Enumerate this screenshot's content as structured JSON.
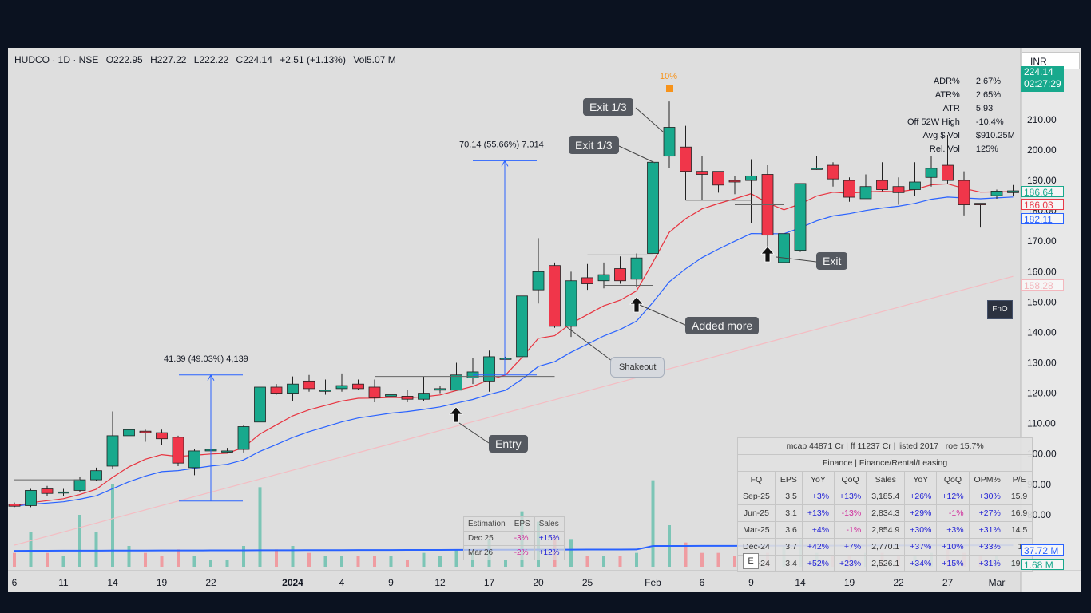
{
  "header": {
    "symbol": "HUDCO · 1D · NSE",
    "open": "O222.95",
    "high": "H227.22",
    "low": "L222.22",
    "close": "C224.14",
    "change": "+2.51 (+1.13%)",
    "volume": "Vol5.07 M"
  },
  "currency": "INR",
  "price_scale": {
    "last_price": "224.14",
    "countdown": "02:27:29",
    "tags": [
      {
        "label": "186.64",
        "color": "#18a98d"
      },
      {
        "label": "186.03",
        "color": "#e93a48"
      },
      {
        "label": "182.11",
        "color": "#2962ff"
      },
      {
        "label": "158.28",
        "color": "#f3b7bd"
      }
    ],
    "volume_tags": [
      {
        "label": "37.72 M",
        "color": "#2962ff"
      },
      {
        "label": "1.68 M",
        "color": "#18a98d"
      }
    ]
  },
  "stats": [
    {
      "label": "ADR%",
      "value": "2.67%"
    },
    {
      "label": "ATR%",
      "value": "2.65%"
    },
    {
      "label": "ATR",
      "value": "5.93"
    },
    {
      "label": "Off 52W High",
      "value": "-10.4%"
    },
    {
      "label": "Avg $ Vol",
      "value": "$910.25M"
    },
    {
      "label": "Rel. Vol",
      "value": "125%"
    }
  ],
  "annotations": {
    "exit_third_1": "Exit 1/3",
    "exit_third_2": "Exit 1/3",
    "added_more": "Added more",
    "entry": "Entry",
    "exit": "Exit",
    "shakeout": "Shakeout",
    "pct_marker": "10%",
    "measure_1": "41.39 (49.03%) 4,139",
    "measure_2": "70.14 (55.66%) 7,014",
    "fno": "FnO",
    "earnings": "E"
  },
  "estimation": {
    "headers": [
      "Estimation",
      "EPS",
      "Sales"
    ],
    "rows": [
      [
        "Dec 25",
        "-3%",
        "+15%"
      ],
      [
        "Mar 26",
        "-2%",
        "+12%"
      ]
    ]
  },
  "financials": {
    "summary": "mcap 44871 Cr  |  ff 11237 Cr  |  listed 2017  |  roe 15.7%",
    "sector": "Finance  |  Finance/Rental/Leasing",
    "headers": [
      "FQ",
      "EPS",
      "YoY",
      "QoQ",
      "Sales",
      "YoY",
      "QoQ",
      "OPM%",
      "P/E"
    ],
    "rows": [
      [
        "Sep-25",
        "3.5",
        "+3%",
        "+13%",
        "3,185.4",
        "+26%",
        "+12%",
        "+30%",
        "15.9"
      ],
      [
        "Jun-25",
        "3.1",
        "+13%",
        "-13%",
        "2,834.3",
        "+29%",
        "-1%",
        "+27%",
        "16.9"
      ],
      [
        "Mar-25",
        "3.6",
        "+4%",
        "-1%",
        "2,854.9",
        "+30%",
        "+3%",
        "+31%",
        "14.5"
      ],
      [
        "Dec-24",
        "3.7",
        "+42%",
        "+7%",
        "2,770.1",
        "+37%",
        "+10%",
        "+33%",
        "17"
      ],
      [
        "Sep-24",
        "3.4",
        "+52%",
        "+23%",
        "2,526.1",
        "+34%",
        "+15%",
        "+31%",
        "19.1"
      ]
    ]
  },
  "chart_data": {
    "type": "candlestick",
    "ylim": [
      65,
      231
    ],
    "y_ticks": [
      80,
      90,
      100,
      110,
      120,
      130,
      140,
      150,
      160,
      170,
      180,
      190,
      200,
      210
    ],
    "x_tick_labels": [
      {
        "i": 0,
        "label": "6"
      },
      {
        "i": 3,
        "label": "11"
      },
      {
        "i": 6,
        "label": "14"
      },
      {
        "i": 9,
        "label": "19"
      },
      {
        "i": 12,
        "label": "22"
      },
      {
        "i": 17,
        "label": "2024"
      },
      {
        "i": 20,
        "label": "4"
      },
      {
        "i": 23,
        "label": "9"
      },
      {
        "i": 26,
        "label": "12"
      },
      {
        "i": 29,
        "label": "17"
      },
      {
        "i": 32,
        "label": "20"
      },
      {
        "i": 35,
        "label": "25"
      },
      {
        "i": 39,
        "label": "Feb"
      },
      {
        "i": 42,
        "label": "6"
      },
      {
        "i": 45,
        "label": "9"
      },
      {
        "i": 48,
        "label": "14"
      },
      {
        "i": 51,
        "label": "19"
      },
      {
        "i": 54,
        "label": "22"
      },
      {
        "i": 57,
        "label": "27"
      },
      {
        "i": 60,
        "label": "Mar"
      }
    ],
    "candles": [
      [
        83.5,
        84,
        82.5,
        82.8,
        4
      ],
      [
        83,
        88.5,
        82.5,
        88,
        10
      ],
      [
        88.5,
        89.5,
        86,
        87,
        4
      ],
      [
        87.5,
        88.5,
        86,
        87.5,
        3
      ],
      [
        88,
        92.5,
        87.5,
        91.5,
        15
      ],
      [
        91.5,
        95.5,
        91,
        94.5,
        10
      ],
      [
        96,
        114,
        95,
        106,
        24
      ],
      [
        106,
        110.5,
        103.5,
        108,
        6
      ],
      [
        107.5,
        108,
        104,
        107,
        4
      ],
      [
        107,
        108,
        103,
        105,
        3
      ],
      [
        105.5,
        106,
        96,
        97,
        5
      ],
      [
        95.5,
        101.5,
        93,
        101,
        3
      ],
      [
        101,
        102.5,
        100.5,
        101.5,
        2
      ],
      [
        101,
        102,
        100.5,
        101,
        2
      ],
      [
        101.5,
        109.5,
        100.5,
        109,
        6
      ],
      [
        110.5,
        131,
        110,
        122,
        23
      ],
      [
        122,
        123,
        119.5,
        120,
        5
      ],
      [
        120,
        125.5,
        117.5,
        123,
        6
      ],
      [
        124,
        126,
        120.5,
        121.5,
        4
      ],
      [
        121,
        124.5,
        119.5,
        121,
        3
      ],
      [
        121.5,
        126.5,
        120.5,
        122.5,
        3
      ],
      [
        123,
        124.5,
        121,
        121.5,
        3
      ],
      [
        122,
        124.5,
        117,
        118.5,
        3
      ],
      [
        119,
        123,
        117,
        119.5,
        3
      ],
      [
        119,
        121,
        117,
        118,
        2
      ],
      [
        118,
        125.5,
        117.5,
        120,
        4
      ],
      [
        121,
        122.5,
        120,
        121.5,
        3
      ],
      [
        121,
        130,
        121,
        126,
        5
      ],
      [
        125,
        131.5,
        123,
        127,
        4
      ],
      [
        124,
        134,
        120.5,
        132,
        8
      ],
      [
        131.5,
        132,
        131,
        131.5,
        2
      ],
      [
        132,
        153,
        131.5,
        152,
        16
      ],
      [
        154,
        171,
        149.5,
        160,
        13
      ],
      [
        162,
        163,
        141.5,
        142,
        9
      ],
      [
        142,
        160,
        138.5,
        157,
        8
      ],
      [
        158,
        162.5,
        154,
        156,
        3
      ],
      [
        157,
        163,
        154.5,
        159,
        3
      ],
      [
        161,
        165,
        156,
        157,
        3
      ],
      [
        157.5,
        166,
        155,
        164.5,
        4
      ],
      [
        166,
        197,
        162.5,
        196,
        25
      ],
      [
        198,
        216,
        194,
        207.5,
        12
      ],
      [
        201,
        208,
        183.5,
        193,
        7
      ],
      [
        193,
        198,
        183.5,
        192,
        4
      ],
      [
        193,
        193,
        186,
        188.5,
        4
      ],
      [
        190,
        191.5,
        185.5,
        189.5,
        3
      ],
      [
        190,
        197,
        176,
        191.5,
        3
      ],
      [
        192,
        195,
        165,
        172,
        4
      ],
      [
        163,
        177,
        157,
        172.5,
        6
      ],
      [
        167,
        189,
        166.5,
        189,
        8
      ],
      [
        194,
        198,
        193.5,
        194,
        4
      ],
      [
        195,
        196,
        188,
        190.5,
        3
      ],
      [
        190,
        191,
        183,
        184.5,
        3
      ],
      [
        184,
        192,
        184,
        188,
        4
      ],
      [
        190,
        196,
        186.5,
        187,
        4
      ],
      [
        188,
        191,
        182,
        186,
        3
      ],
      [
        187,
        196,
        185,
        189.5,
        3
      ],
      [
        191,
        198,
        188,
        194,
        4
      ],
      [
        195,
        205,
        189,
        190,
        5
      ],
      [
        190,
        193,
        178.5,
        182,
        4
      ],
      [
        182.5,
        182.5,
        174.5,
        182,
        3
      ],
      [
        185,
        187,
        184,
        186.5,
        3
      ],
      [
        186,
        188.5,
        185,
        186.6,
        1.5
      ]
    ],
    "volume_ylim": [
      0,
      30
    ]
  }
}
